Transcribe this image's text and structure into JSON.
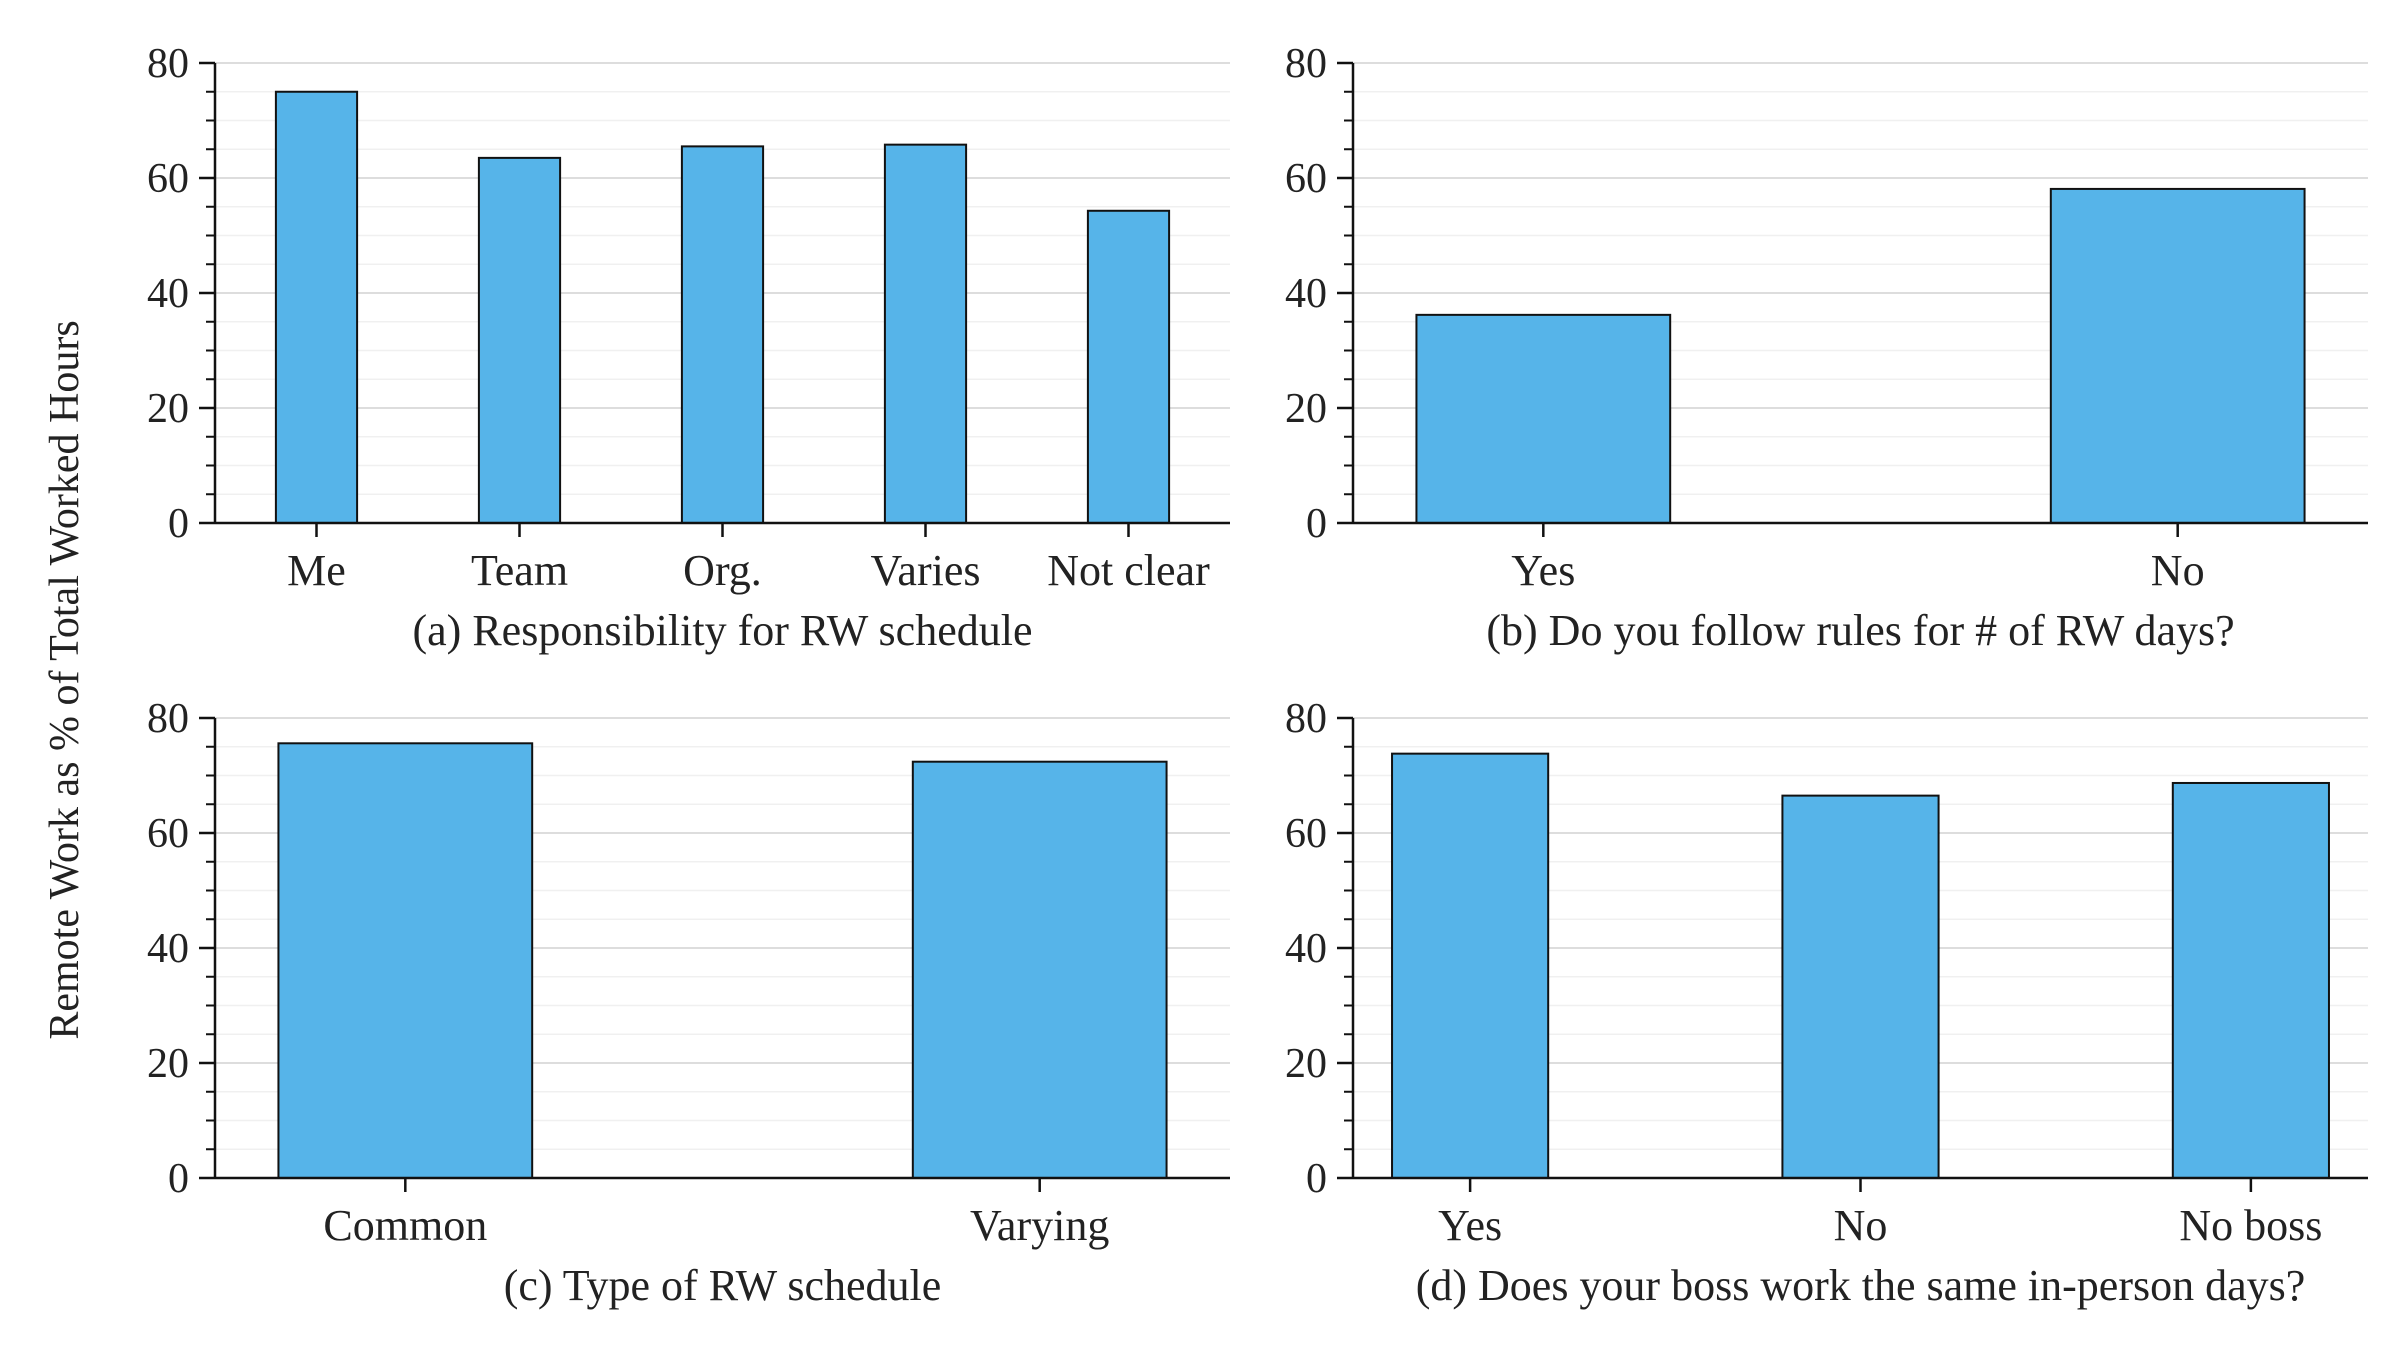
{
  "figure": {
    "ylabel": "Remote Work as % of Total Worked Hours"
  },
  "colors": {
    "bar": "#56b4e9",
    "bar_edge": "#111111",
    "major_grid": "#dddddd",
    "minor_grid": "#f0f0f0",
    "axis": "#111111"
  },
  "chart_data": [
    {
      "type": "bar",
      "title": "(a) Responsibility for RW schedule",
      "categories": [
        "Me",
        "Team",
        "Org.",
        "Varies",
        "Not clear"
      ],
      "values": [
        75,
        63.5,
        65.5,
        65.8,
        54.3
      ],
      "ylim": [
        0,
        80
      ],
      "yticks": [
        "0",
        "20",
        "40",
        "60",
        "80"
      ],
      "xlabel": "",
      "ylabel": ""
    },
    {
      "type": "bar",
      "title": "(b) Do you follow rules for # of RW days?",
      "categories": [
        "Yes",
        "No"
      ],
      "values": [
        36.2,
        58.1
      ],
      "ylim": [
        0,
        80
      ],
      "yticks": [
        "0",
        "20",
        "40",
        "60",
        "80"
      ],
      "xlabel": "",
      "ylabel": ""
    },
    {
      "type": "bar",
      "title": "(c) Type of RW schedule",
      "categories": [
        "Common",
        "Varying"
      ],
      "values": [
        75.6,
        72.4
      ],
      "ylim": [
        0,
        80
      ],
      "yticks": [
        "0",
        "20",
        "40",
        "60",
        "80"
      ],
      "xlabel": "",
      "ylabel": ""
    },
    {
      "type": "bar",
      "title": "(d) Does your boss work the same in-person days?",
      "categories": [
        "Yes",
        "No",
        "No boss"
      ],
      "values": [
        73.8,
        66.5,
        68.7
      ],
      "ylim": [
        0,
        80
      ],
      "yticks": [
        "0",
        "20",
        "40",
        "60",
        "80"
      ],
      "xlabel": "",
      "ylabel": ""
    }
  ]
}
